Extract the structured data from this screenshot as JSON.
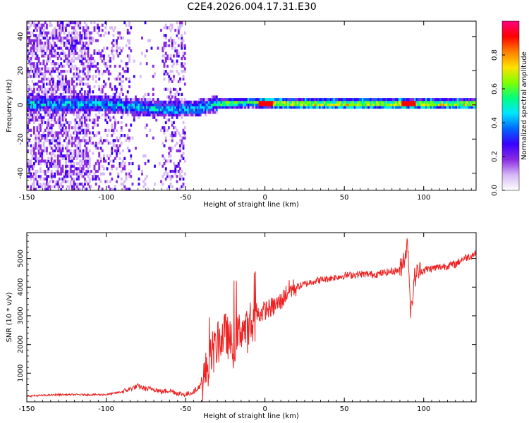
{
  "title": "C2E4.2026.004.17.31.E30",
  "chart_data": [
    {
      "type": "heatmap",
      "xlabel": "Height of straight line (km)",
      "ylabel": "Frequency (Hz)",
      "xlim": [
        -150,
        133
      ],
      "ylim": [
        -50,
        49
      ],
      "x_ticks": [
        "-150",
        "-100",
        "-50",
        "0",
        "50",
        "100"
      ],
      "y_ticks": [
        "-40",
        "-20",
        "0",
        "20",
        "40"
      ],
      "colorbar": {
        "label": "Normalized spectral amplitude",
        "range": [
          0,
          1
        ],
        "ticks": [
          "0.0",
          "0.2",
          "0.4",
          "0.6",
          "0.8"
        ],
        "colors": [
          "#ffffff",
          "#d6b8f5",
          "#8a2be2",
          "#3a00ff",
          "#0066ff",
          "#00e5ff",
          "#00ff80",
          "#80ff00",
          "#ffe000",
          "#ff8000",
          "#ff0000",
          "#ff0080"
        ]
      },
      "signal_band": [
        {
          "x": -115,
          "f": 0
        },
        {
          "x": -100,
          "f": 0
        },
        {
          "x": -80,
          "f": -2
        },
        {
          "x": -60,
          "f": -3
        },
        {
          "x": -45,
          "f": -3
        },
        {
          "x": -30,
          "f": 0
        },
        {
          "x": -10,
          "f": 1
        },
        {
          "x": 20,
          "f": 0
        },
        {
          "x": 60,
          "f": 0
        },
        {
          "x": 100,
          "f": 0
        },
        {
          "x": 133,
          "f": 0
        }
      ]
    },
    {
      "type": "line",
      "xlabel": "Height of straight line (km)",
      "ylabel": "SNR (10 * v/v)",
      "xlim": [
        -150,
        133
      ],
      "ylim": [
        0,
        5900
      ],
      "x_ticks": [
        "-150",
        "-100",
        "-50",
        "0",
        "50",
        "100"
      ],
      "y_ticks": [
        "1000",
        "2000",
        "3000",
        "4000",
        "5000"
      ],
      "color": "#ee2222",
      "series": [
        {
          "x": [
            -150,
            -130,
            -110,
            -100,
            -90,
            -85,
            -80,
            -75,
            -70,
            -65,
            -60,
            -55,
            -50,
            -45,
            -40,
            -35,
            -30,
            -25,
            -20,
            -15,
            -10,
            -5,
            0,
            5,
            10,
            15,
            20,
            30,
            40,
            50,
            60,
            70,
            80,
            85,
            88,
            90,
            92,
            94,
            96,
            100,
            110,
            120,
            125,
            130,
            133
          ],
          "y": [
            200,
            250,
            250,
            250,
            350,
            450,
            550,
            450,
            450,
            350,
            400,
            300,
            250,
            350,
            600,
            1400,
            2000,
            2400,
            1900,
            2600,
            2400,
            3000,
            3200,
            3300,
            3500,
            3900,
            4000,
            4200,
            4300,
            4400,
            4450,
            4450,
            4550,
            4600,
            5100,
            5500,
            3000,
            4300,
            4500,
            4600,
            4700,
            4800,
            5000,
            5100,
            5200
          ]
        }
      ]
    }
  ]
}
